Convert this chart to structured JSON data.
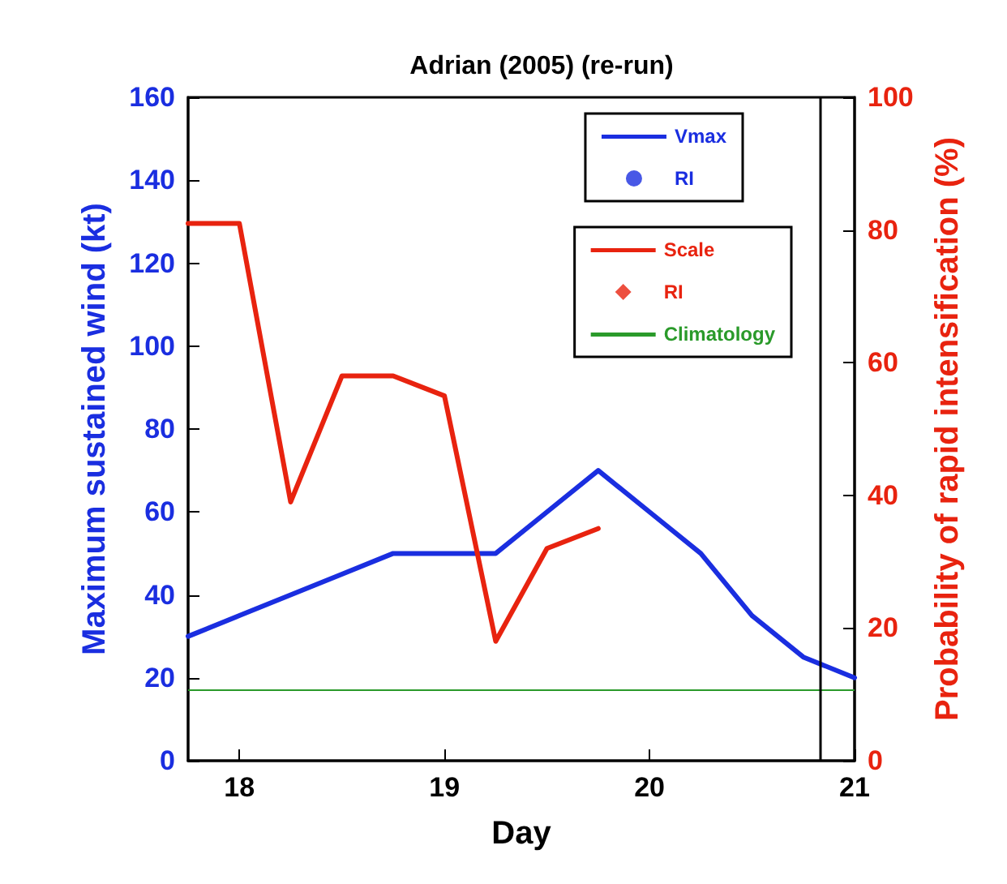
{
  "chart_data": {
    "type": "line",
    "title": "Adrian (2005) (re-run)",
    "xlabel": "Day",
    "ylabel": "Maximum sustained wind (kt)",
    "y2label": "Probability of rapid intensification (%)",
    "x": [
      17.75,
      18,
      18.25,
      18.5,
      18.75,
      19,
      19.25,
      19.5,
      19.75,
      20,
      20.25,
      20.5,
      20.75,
      21
    ],
    "series": [
      {
        "name": "Vmax",
        "color": "#1a2ee0",
        "marker": "none",
        "values": [
          30,
          35,
          40,
          45,
          50,
          50,
          50,
          60,
          70,
          60,
          50,
          35,
          25,
          20
        ]
      },
      {
        "name": "RI",
        "color": "#1a2ee0",
        "type": "scatter",
        "marker": "circle",
        "values": [
          null,
          null,
          null,
          null,
          null,
          null,
          null,
          null,
          null,
          null,
          null,
          null,
          null,
          null
        ]
      },
      {
        "name": "Scale",
        "color": "#e8230f",
        "axis": "y2",
        "marker": "none",
        "values": [
          81,
          81,
          39,
          58,
          58,
          55,
          18,
          32,
          35,
          null,
          null,
          null,
          null,
          null
        ]
      },
      {
        "name": "RI",
        "color": "#e8230f",
        "type": "scatter",
        "axis": "y2",
        "marker": "diamond",
        "values": [
          null,
          null,
          null,
          null,
          null,
          null,
          null,
          null,
          null,
          null,
          null,
          null,
          null,
          null
        ]
      }
    ],
    "ref_lines": [
      {
        "axis": "y2",
        "value": 10.6,
        "label": "Climatology",
        "color": "#2a9a2a"
      },
      {
        "axis": "x",
        "value": 20.83,
        "color": "#000000"
      }
    ],
    "xlim": [
      17.75,
      21
    ],
    "xticks": [
      18,
      19,
      20,
      21
    ],
    "ylim": [
      0,
      160
    ],
    "yticks": [
      0,
      20,
      40,
      60,
      80,
      100,
      120,
      140,
      160
    ],
    "y2lim": [
      0,
      100
    ],
    "y2ticks": [
      0,
      20,
      40,
      60,
      80,
      100
    ],
    "grid": false,
    "legend": "top right"
  }
}
